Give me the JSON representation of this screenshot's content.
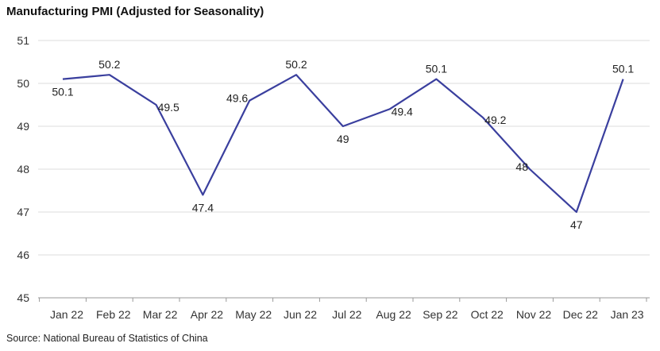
{
  "title": "Manufacturing PMI (Adjusted for Seasonality)",
  "source": "Source: National Bureau of Statistics of China",
  "colors": {
    "line": "#3a3f9e",
    "grid": "#dddddd",
    "axis": "#999999"
  },
  "chart_data": {
    "type": "line",
    "title": "Manufacturing PMI (Adjusted for Seasonality)",
    "categories": [
      "Jan 22",
      "Feb 22",
      "Mar 22",
      "Apr 22",
      "May 22",
      "Jun 22",
      "Jul 22",
      "Aug 22",
      "Sep 22",
      "Oct 22",
      "Nov 22",
      "Dec 22",
      "Jan 23"
    ],
    "series": [
      {
        "values": [
          50.1,
          50.2,
          49.5,
          47.4,
          49.6,
          50.2,
          49,
          49.4,
          50.1,
          49.2,
          48,
          47,
          50.1
        ],
        "labels": [
          "50.1",
          "50.2",
          "49.5",
          "47.4",
          "49.6",
          "50.2",
          "49",
          "49.4",
          "50.1",
          "49.2",
          "48",
          "47",
          "50.1"
        ]
      }
    ],
    "ylim": [
      45,
      51
    ],
    "yticks": [
      45,
      46,
      47,
      48,
      49,
      50,
      51
    ],
    "xlabel": "",
    "ylabel": "",
    "grid": true,
    "legend": "none"
  }
}
